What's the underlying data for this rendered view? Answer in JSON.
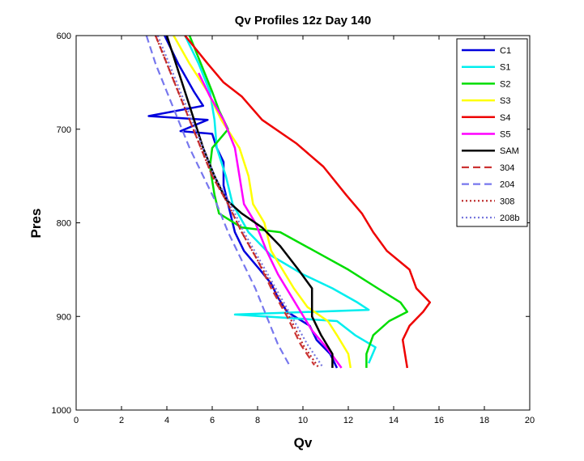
{
  "chart_data": {
    "type": "line",
    "title": "Qv Profiles 12z Day 140",
    "xlabel": "Qv",
    "ylabel": "Pres",
    "xlim": [
      0,
      20
    ],
    "ylim": [
      600,
      1000
    ],
    "y_reversed": true,
    "xticks": [
      0,
      2,
      4,
      6,
      8,
      10,
      12,
      14,
      16,
      18,
      20
    ],
    "yticks": [
      600,
      700,
      800,
      900,
      1000
    ],
    "legend_position": "top-right",
    "grid": false,
    "series": [
      {
        "name": "C1",
        "color": "#0000dd",
        "style": "solid",
        "points": [
          [
            3.9,
            600
          ],
          [
            4.5,
            630
          ],
          [
            5.2,
            660
          ],
          [
            5.6,
            675
          ],
          [
            3.2,
            686
          ],
          [
            5.8,
            690
          ],
          [
            4.6,
            702
          ],
          [
            6.0,
            705
          ],
          [
            6.2,
            720
          ],
          [
            6.5,
            735
          ],
          [
            6.5,
            760
          ],
          [
            6.8,
            790
          ],
          [
            7.0,
            810
          ],
          [
            7.4,
            830
          ],
          [
            8.1,
            850
          ],
          [
            8.6,
            865
          ],
          [
            8.9,
            880
          ],
          [
            9.3,
            895
          ],
          [
            10.3,
            910
          ],
          [
            10.6,
            925
          ],
          [
            11.2,
            940
          ],
          [
            11.5,
            955
          ]
        ]
      },
      {
        "name": "S1",
        "color": "#00eeee",
        "style": "solid",
        "points": [
          [
            4.8,
            600
          ],
          [
            5.4,
            630
          ],
          [
            5.9,
            660
          ],
          [
            6.1,
            690
          ],
          [
            6.2,
            720
          ],
          [
            6.6,
            750
          ],
          [
            6.9,
            780
          ],
          [
            7.6,
            810
          ],
          [
            8.6,
            835
          ],
          [
            10.0,
            855
          ],
          [
            11.3,
            870
          ],
          [
            12.4,
            885
          ],
          [
            12.9,
            893
          ],
          [
            7.0,
            898
          ],
          [
            11.5,
            905
          ],
          [
            12.3,
            920
          ],
          [
            13.2,
            933
          ],
          [
            12.9,
            950
          ]
        ]
      },
      {
        "name": "S2",
        "color": "#00dd00",
        "style": "solid",
        "points": [
          [
            5.0,
            600
          ],
          [
            5.5,
            630
          ],
          [
            6.0,
            660
          ],
          [
            6.3,
            680
          ],
          [
            6.7,
            700
          ],
          [
            6.0,
            720
          ],
          [
            5.9,
            740
          ],
          [
            6.1,
            770
          ],
          [
            6.3,
            790
          ],
          [
            7.3,
            805
          ],
          [
            9.0,
            810
          ],
          [
            10.5,
            830
          ],
          [
            12.0,
            850
          ],
          [
            13.3,
            870
          ],
          [
            14.3,
            885
          ],
          [
            14.6,
            895
          ],
          [
            13.8,
            905
          ],
          [
            13.1,
            920
          ],
          [
            12.8,
            940
          ],
          [
            12.8,
            955
          ]
        ]
      },
      {
        "name": "S3",
        "color": "#ffff00",
        "style": "solid",
        "points": [
          [
            4.3,
            600
          ],
          [
            5.0,
            630
          ],
          [
            5.8,
            660
          ],
          [
            6.4,
            690
          ],
          [
            7.2,
            720
          ],
          [
            7.6,
            750
          ],
          [
            7.8,
            780
          ],
          [
            8.3,
            800
          ],
          [
            8.6,
            830
          ],
          [
            9.1,
            850
          ],
          [
            9.6,
            870
          ],
          [
            10.2,
            890
          ],
          [
            11.1,
            905
          ],
          [
            11.5,
            920
          ],
          [
            12.0,
            940
          ],
          [
            12.1,
            955
          ]
        ]
      },
      {
        "name": "S4",
        "color": "#ee0000",
        "style": "solid",
        "points": [
          [
            4.8,
            600
          ],
          [
            5.8,
            630
          ],
          [
            6.5,
            650
          ],
          [
            7.3,
            665
          ],
          [
            8.2,
            690
          ],
          [
            9.7,
            715
          ],
          [
            10.9,
            740
          ],
          [
            11.9,
            770
          ],
          [
            12.6,
            790
          ],
          [
            13.1,
            810
          ],
          [
            13.7,
            830
          ],
          [
            14.7,
            850
          ],
          [
            15.0,
            870
          ],
          [
            15.6,
            885
          ],
          [
            15.3,
            895
          ],
          [
            14.7,
            910
          ],
          [
            14.4,
            925
          ],
          [
            14.6,
            955
          ]
        ]
      },
      {
        "name": "S5",
        "color": "#ff00ff",
        "style": "solid",
        "points": [
          [
            5.4,
            640
          ],
          [
            5.9,
            665
          ],
          [
            6.5,
            690
          ],
          [
            7.0,
            720
          ],
          [
            7.2,
            750
          ],
          [
            7.4,
            780
          ],
          [
            7.9,
            800
          ],
          [
            8.4,
            830
          ],
          [
            8.9,
            855
          ],
          [
            9.4,
            875
          ],
          [
            9.9,
            895
          ],
          [
            10.4,
            915
          ],
          [
            11.1,
            935
          ],
          [
            11.7,
            955
          ]
        ]
      },
      {
        "name": "SAM",
        "color": "#000000",
        "style": "solid",
        "points": [
          [
            4.0,
            600
          ],
          [
            4.4,
            630
          ],
          [
            4.8,
            660
          ],
          [
            5.2,
            690
          ],
          [
            5.6,
            720
          ],
          [
            6.1,
            750
          ],
          [
            6.6,
            775
          ],
          [
            7.3,
            790
          ],
          [
            8.2,
            805
          ],
          [
            9.0,
            825
          ],
          [
            9.8,
            850
          ],
          [
            10.4,
            870
          ],
          [
            10.4,
            900
          ],
          [
            10.8,
            920
          ],
          [
            11.3,
            940
          ],
          [
            11.3,
            955
          ]
        ]
      },
      {
        "name": "304",
        "color": "#cc3333",
        "style": "dashed",
        "points": [
          [
            3.5,
            600
          ],
          [
            4.0,
            630
          ],
          [
            4.5,
            660
          ],
          [
            5.0,
            690
          ],
          [
            5.5,
            720
          ],
          [
            6.0,
            750
          ],
          [
            6.7,
            780
          ],
          [
            7.3,
            810
          ],
          [
            8.0,
            840
          ],
          [
            8.6,
            870
          ],
          [
            9.3,
            900
          ],
          [
            9.9,
            930
          ],
          [
            10.5,
            952
          ]
        ]
      },
      {
        "name": "204",
        "color": "#7777ee",
        "style": "dashed",
        "points": [
          [
            3.1,
            600
          ],
          [
            3.5,
            630
          ],
          [
            4.0,
            660
          ],
          [
            4.5,
            690
          ],
          [
            5.0,
            720
          ],
          [
            5.6,
            750
          ],
          [
            6.2,
            780
          ],
          [
            6.7,
            810
          ],
          [
            7.3,
            840
          ],
          [
            7.9,
            870
          ],
          [
            8.4,
            900
          ],
          [
            8.9,
            930
          ],
          [
            9.4,
            952
          ]
        ]
      },
      {
        "name": "308",
        "color": "#bb2222",
        "style": "dotted",
        "points": [
          [
            3.5,
            600
          ],
          [
            4.0,
            630
          ],
          [
            4.5,
            660
          ],
          [
            5.0,
            690
          ],
          [
            5.5,
            720
          ],
          [
            6.0,
            750
          ],
          [
            6.7,
            780
          ],
          [
            7.3,
            810
          ],
          [
            8.0,
            840
          ],
          [
            8.7,
            870
          ],
          [
            9.4,
            900
          ],
          [
            10.0,
            930
          ],
          [
            10.7,
            955
          ]
        ]
      },
      {
        "name": "208b",
        "color": "#7777dd",
        "style": "dotted",
        "points": [
          [
            3.6,
            600
          ],
          [
            4.1,
            630
          ],
          [
            4.6,
            660
          ],
          [
            5.1,
            690
          ],
          [
            5.6,
            720
          ],
          [
            6.1,
            750
          ],
          [
            6.8,
            780
          ],
          [
            7.4,
            810
          ],
          [
            8.1,
            840
          ],
          [
            8.8,
            870
          ],
          [
            9.5,
            900
          ],
          [
            10.2,
            930
          ],
          [
            10.9,
            955
          ]
        ]
      }
    ]
  }
}
